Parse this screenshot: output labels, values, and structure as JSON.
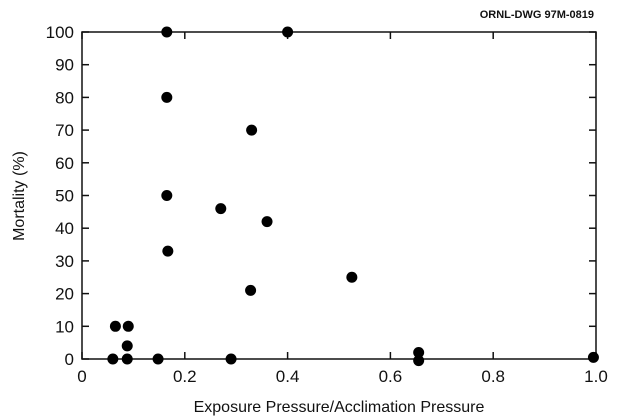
{
  "chart_data": {
    "type": "scatter",
    "title": "",
    "corner_label": "ORNL-DWG 97M-0819",
    "xlabel": "Exposure Pressure/Acclimation Pressure",
    "ylabel": "Mortality (%)",
    "xlim": [
      0,
      1.0
    ],
    "ylim": [
      0,
      100
    ],
    "x_ticks": [
      0,
      0.2,
      0.4,
      0.6,
      0.8,
      1.0
    ],
    "x_tick_labels": [
      "0",
      "0.2",
      "0.4",
      "0.6",
      "0.8",
      "1.0"
    ],
    "y_ticks": [
      0,
      10,
      20,
      30,
      40,
      50,
      60,
      70,
      80,
      90,
      100
    ],
    "y_tick_labels": [
      "0",
      "10",
      "20",
      "30",
      "40",
      "50",
      "60",
      "70",
      "80",
      "90",
      "100"
    ],
    "grid": false,
    "marker_color": "#000000",
    "points": [
      {
        "x": 0.165,
        "y": 100
      },
      {
        "x": 0.4,
        "y": 100
      },
      {
        "x": 0.165,
        "y": 80
      },
      {
        "x": 0.33,
        "y": 70
      },
      {
        "x": 0.165,
        "y": 50
      },
      {
        "x": 0.27,
        "y": 46
      },
      {
        "x": 0.36,
        "y": 42
      },
      {
        "x": 0.167,
        "y": 33
      },
      {
        "x": 0.525,
        "y": 25
      },
      {
        "x": 0.328,
        "y": 21
      },
      {
        "x": 0.065,
        "y": 10
      },
      {
        "x": 0.09,
        "y": 10
      },
      {
        "x": 0.088,
        "y": 4
      },
      {
        "x": 0.06,
        "y": 0
      },
      {
        "x": 0.088,
        "y": 0
      },
      {
        "x": 0.148,
        "y": 0
      },
      {
        "x": 0.29,
        "y": 0
      },
      {
        "x": 0.655,
        "y": 2
      },
      {
        "x": 0.655,
        "y": -0.5
      },
      {
        "x": 0.995,
        "y": 0.5
      }
    ]
  }
}
